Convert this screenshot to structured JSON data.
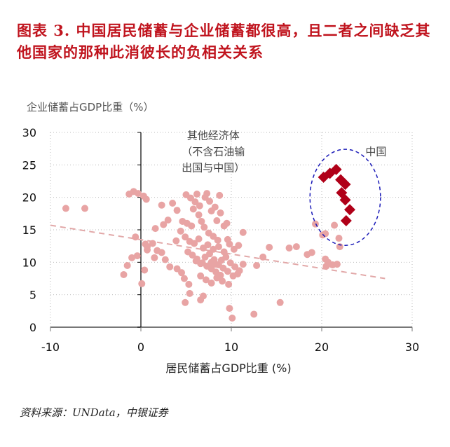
{
  "header": {
    "title": "图表 3. 中国居民储蓄与企业储蓄都很高，且二者之间缺乏其他国家的那种此消彼长的负相关关系"
  },
  "footer": {
    "source": "资料来源：UNData，中银证券"
  },
  "colors": {
    "title": "#c0141e",
    "other_points": "#e8a4a4",
    "china_points": "#b00018",
    "circle": "#1a1ab8",
    "trendline": "#e2a8a8"
  },
  "chart_data": {
    "type": "scatter",
    "title": "中国居民储蓄与企业储蓄都很高，且二者之间缺乏其他国家的那种此消彼长的负相关关系",
    "xlabel": "居民储蓄占GDP比重 (%)",
    "ylabel": "企业储蓄占GDP比重（%）",
    "xlim": [
      -10,
      30
    ],
    "ylim": [
      0,
      30
    ],
    "xticks": [
      -10,
      0,
      10,
      20,
      30
    ],
    "yticks": [
      0,
      5,
      10,
      15,
      20,
      25,
      30
    ],
    "grid": true,
    "annotations": [
      {
        "text": "其他经济体",
        "x": 8,
        "y": 29
      },
      {
        "text": "（不含石油输",
        "x": 8,
        "y": 26.5
      },
      {
        "text": "出国与中国）",
        "x": 8,
        "y": 24
      },
      {
        "text": "中国",
        "x": 26,
        "y": 26.5
      }
    ],
    "trendline": {
      "series": "其他经济体",
      "from": [
        -10,
        15.7
      ],
      "to": [
        27,
        7.5
      ],
      "style": "dashed"
    },
    "china_circle": {
      "cx": 22.6,
      "cy": 20,
      "rx": 3.9,
      "ry": 7.4,
      "style": "dashed"
    },
    "series": [
      {
        "name": "其他经济体（不含石油输出国与中国）",
        "marker": "circle",
        "points": [
          [
            -8.3,
            18.3
          ],
          [
            -6.2,
            18.3
          ],
          [
            -1.3,
            20.5
          ],
          [
            -0.8,
            20.9
          ],
          [
            -0.3,
            20.6
          ],
          [
            0.3,
            20.2
          ],
          [
            0.6,
            19.7
          ],
          [
            -0.6,
            13.9
          ],
          [
            0.5,
            12.8
          ],
          [
            0.7,
            11.9
          ],
          [
            -0.4,
            11.0
          ],
          [
            -1.5,
            9.5
          ],
          [
            -1.0,
            10.7
          ],
          [
            -1.9,
            8.1
          ],
          [
            0.4,
            8.8
          ],
          [
            0.1,
            6.7
          ],
          [
            0.7,
            12.4
          ],
          [
            1.3,
            12.9
          ],
          [
            1.8,
            11.8
          ],
          [
            2.3,
            11.5
          ],
          [
            1.5,
            10.7
          ],
          [
            2.7,
            10.4
          ],
          [
            3.2,
            9.3
          ],
          [
            4.0,
            9.0
          ],
          [
            4.5,
            8.4
          ],
          [
            4.8,
            7.5
          ],
          [
            5.3,
            6.6
          ],
          [
            1.6,
            15.2
          ],
          [
            2.5,
            15.8
          ],
          [
            3.0,
            16.5
          ],
          [
            2.3,
            18.8
          ],
          [
            3.5,
            19.1
          ],
          [
            4.0,
            18.0
          ],
          [
            4.6,
            16.3
          ],
          [
            5.1,
            16.0
          ],
          [
            5.6,
            15.6
          ],
          [
            3.9,
            13.3
          ],
          [
            4.4,
            14.8
          ],
          [
            4.9,
            13.9
          ],
          [
            5.4,
            13.2
          ],
          [
            5.9,
            12.9
          ],
          [
            6.4,
            13.6
          ],
          [
            6.9,
            12.2
          ],
          [
            7.4,
            12.7
          ],
          [
            5.0,
            20.4
          ],
          [
            5.5,
            19.9
          ],
          [
            6.0,
            19.3
          ],
          [
            6.5,
            18.7
          ],
          [
            7.1,
            20.0
          ],
          [
            7.6,
            19.4
          ],
          [
            8.2,
            18.5
          ],
          [
            8.8,
            17.6
          ],
          [
            6.2,
            20.5
          ],
          [
            7.3,
            20.6
          ],
          [
            8.7,
            20.3
          ],
          [
            7.8,
            17.9
          ],
          [
            8.4,
            16.4
          ],
          [
            9.5,
            16.0
          ],
          [
            9.2,
            15.6
          ],
          [
            5.8,
            18.2
          ],
          [
            6.4,
            17.3
          ],
          [
            6.7,
            16.3
          ],
          [
            7.0,
            15.4
          ],
          [
            7.5,
            14.5
          ],
          [
            8.0,
            14.0
          ],
          [
            8.5,
            13.4
          ],
          [
            5.2,
            11.6
          ],
          [
            5.7,
            11.1
          ],
          [
            6.2,
            10.5
          ],
          [
            6.8,
            9.9
          ],
          [
            7.3,
            9.4
          ],
          [
            7.8,
            9.0
          ],
          [
            8.3,
            8.5
          ],
          [
            8.8,
            8.0
          ],
          [
            6.1,
            10.2
          ],
          [
            6.6,
            9.8
          ],
          [
            7.1,
            10.8
          ],
          [
            7.6,
            11.3
          ],
          [
            8.1,
            10.4
          ],
          [
            8.6,
            9.6
          ],
          [
            9.1,
            9.1
          ],
          [
            9.6,
            8.6
          ],
          [
            7.8,
            10.0
          ],
          [
            8.3,
            9.7
          ],
          [
            8.9,
            10.3
          ],
          [
            9.4,
            10.8
          ],
          [
            9.9,
            9.9
          ],
          [
            10.4,
            9.3
          ],
          [
            10.9,
            8.7
          ],
          [
            11.3,
            9.7
          ],
          [
            8.0,
            12.0
          ],
          [
            8.6,
            12.4
          ],
          [
            9.2,
            11.6
          ],
          [
            9.8,
            12.8
          ],
          [
            10.3,
            12.0
          ],
          [
            10.8,
            12.6
          ],
          [
            11.3,
            14.6
          ],
          [
            9.6,
            13.5
          ],
          [
            6.6,
            7.9
          ],
          [
            7.2,
            7.3
          ],
          [
            7.8,
            6.8
          ],
          [
            8.4,
            7.6
          ],
          [
            9.0,
            7.1
          ],
          [
            9.7,
            6.6
          ],
          [
            10.2,
            7.9
          ],
          [
            10.7,
            8.2
          ],
          [
            4.9,
            3.8
          ],
          [
            6.6,
            4.2
          ],
          [
            6.9,
            4.8
          ],
          [
            5.4,
            5.2
          ],
          [
            9.8,
            2.9
          ],
          [
            10.1,
            1.4
          ],
          [
            12.5,
            2.0
          ],
          [
            15.4,
            3.8
          ],
          [
            12.8,
            9.5
          ],
          [
            13.5,
            10.8
          ],
          [
            14.2,
            12.3
          ],
          [
            16.4,
            12.2
          ],
          [
            17.2,
            12.4
          ],
          [
            18.4,
            11.2
          ],
          [
            18.9,
            11.5
          ],
          [
            19.3,
            15.9
          ],
          [
            20.1,
            14.2
          ],
          [
            20.4,
            14.4
          ],
          [
            21.4,
            15.7
          ],
          [
            21.9,
            13.7
          ],
          [
            22.0,
            12.4
          ],
          [
            20.5,
            9.4
          ],
          [
            20.7,
            10.0
          ],
          [
            21.2,
            9.6
          ],
          [
            21.7,
            9.7
          ],
          [
            20.4,
            10.5
          ]
        ]
      },
      {
        "name": "中国",
        "marker": "diamond",
        "points": [
          [
            20.2,
            23.1
          ],
          [
            20.9,
            23.7
          ],
          [
            21.6,
            24.3
          ],
          [
            22.1,
            22.7
          ],
          [
            22.6,
            22.0
          ],
          [
            22.2,
            20.7
          ],
          [
            22.6,
            19.6
          ],
          [
            23.1,
            18.1
          ],
          [
            22.7,
            16.4
          ]
        ]
      }
    ]
  }
}
